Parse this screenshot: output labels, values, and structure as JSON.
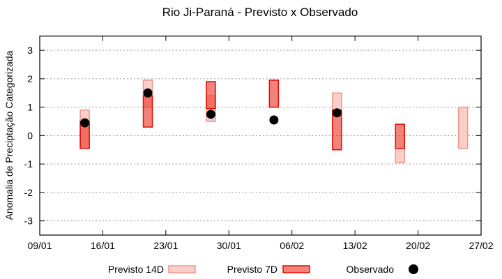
{
  "chart_data": {
    "type": "interval-bar+scatter",
    "title": "Rio Ji-Paraná - Previsto x Observado",
    "ylabel": "Anomalia de Preciptação Categorizada",
    "xlabel": "",
    "ylim": [
      -3.5,
      3.5
    ],
    "yticks": [
      3,
      2,
      1,
      0,
      -1,
      -2,
      -3
    ],
    "xtick_labels": [
      "09/01",
      "16/01",
      "23/01",
      "30/01",
      "06/02",
      "13/02",
      "20/02",
      "27/02"
    ],
    "xtick_days": [
      0,
      7,
      14,
      21,
      28,
      35,
      42,
      49
    ],
    "xlim_days": [
      0,
      49
    ],
    "grid": "horizontal-dotted",
    "legend_position": "bottom",
    "colors": {
      "background": "#ffffff",
      "axis": "#000000",
      "grid": "#9a9a9a",
      "previsto14_fill": "#fbcfc9",
      "previsto14_border": "#ef958d",
      "previsto7_fill": "#ec261a",
      "previsto7_border": "#da0e04",
      "observado": "#000000"
    },
    "series": [
      {
        "name": "Previsto 14D",
        "type": "interval",
        "points": [
          {
            "date": "14/01",
            "day": 5,
            "low": -0.45,
            "high": 0.9
          },
          {
            "date": "21/01",
            "day": 12,
            "low": 1.0,
            "high": 1.95
          },
          {
            "date": "28/01",
            "day": 19,
            "low": 0.5,
            "high": 1.4
          },
          {
            "date": "11/02",
            "day": 33,
            "low": 0.9,
            "high": 1.5
          },
          {
            "date": "18/02",
            "day": 40,
            "low": -0.95,
            "high": -0.45
          },
          {
            "date": "25/02",
            "day": 47,
            "low": -0.45,
            "high": 1.0
          }
        ]
      },
      {
        "name": "Previsto 7D",
        "type": "interval",
        "points": [
          {
            "date": "14/01",
            "day": 5,
            "low": -0.45,
            "high": 0.5
          },
          {
            "date": "21/01",
            "day": 12,
            "low": 0.3,
            "high": 1.4
          },
          {
            "date": "28/01",
            "day": 19,
            "low": 0.95,
            "high": 1.9
          },
          {
            "date": "04/02",
            "day": 26,
            "low": 1.0,
            "high": 1.95
          },
          {
            "date": "11/02",
            "day": 33,
            "low": -0.5,
            "high": 0.9
          },
          {
            "date": "18/02",
            "day": 40,
            "low": -0.45,
            "high": 0.4
          }
        ]
      },
      {
        "name": "Observado",
        "type": "scatter",
        "points": [
          {
            "date": "14/01",
            "day": 5,
            "value": 0.45
          },
          {
            "date": "21/01",
            "day": 12,
            "value": 1.5
          },
          {
            "date": "28/01",
            "day": 19,
            "value": 0.75
          },
          {
            "date": "04/02",
            "day": 26,
            "value": 0.55
          },
          {
            "date": "11/02",
            "day": 33,
            "value": 0.8
          }
        ]
      }
    ],
    "legend": [
      "Previsto 14D",
      "Previsto 7D",
      "Observado"
    ]
  }
}
